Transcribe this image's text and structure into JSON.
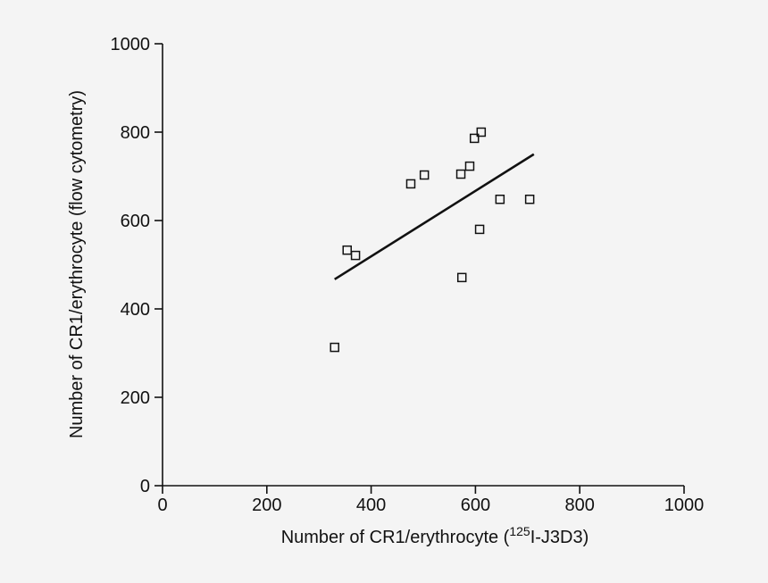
{
  "chart_data": {
    "type": "scatter",
    "x_label": {
      "before": "Number of CR1/erythrocyte (",
      "superscript": "125",
      "after": "I-J3D3)"
    },
    "y_label": "Number of CR1/erythrocyte (flow cytometry)",
    "x": [
      330,
      354,
      370,
      476,
      502,
      572,
      589,
      598,
      611,
      647,
      704,
      608,
      574
    ],
    "y": [
      313,
      533,
      521,
      683,
      703,
      705,
      723,
      786,
      800,
      648,
      648,
      580,
      471
    ],
    "trendline": {
      "x": [
        330,
        712
      ],
      "y": [
        467,
        750
      ]
    },
    "xlim": [
      0,
      1000
    ],
    "xticks": [
      0,
      200,
      400,
      600,
      800,
      1000
    ],
    "ylim": [
      0,
      1000
    ],
    "yticks": [
      0,
      200,
      400,
      600,
      800,
      1000
    ],
    "marker": "square",
    "color": "#111111",
    "grid": false
  }
}
